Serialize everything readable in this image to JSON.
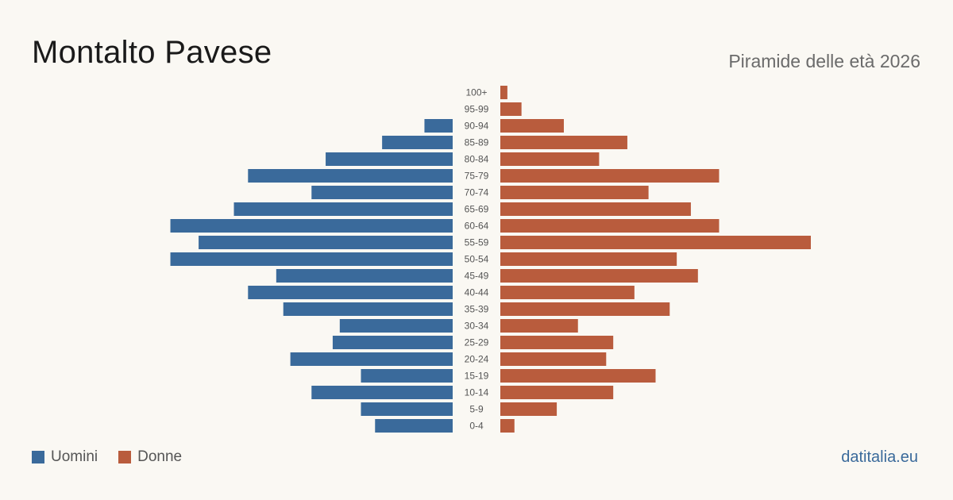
{
  "header": {
    "title": "Montalto Pavese",
    "subtitle": "Piramide delle età 2026"
  },
  "legend": {
    "items": [
      {
        "label": "Uomini",
        "color": "#3a6a9b"
      },
      {
        "label": "Donne",
        "color": "#b95c3d"
      }
    ]
  },
  "footer": {
    "source": "datitalia.eu"
  },
  "colors": {
    "men": "#3a6a9b",
    "women": "#b95c3d",
    "background": "#faf8f3"
  },
  "chart_data": {
    "type": "bar",
    "orientation": "horizontal-population-pyramid",
    "categories": [
      "100+",
      "95-99",
      "90-94",
      "85-89",
      "80-84",
      "75-79",
      "70-74",
      "65-69",
      "60-64",
      "55-59",
      "50-54",
      "45-49",
      "40-44",
      "35-39",
      "30-34",
      "25-29",
      "20-24",
      "15-19",
      "10-14",
      "5-9",
      "0-4"
    ],
    "series": [
      {
        "name": "Uomini",
        "values": [
          0,
          0,
          4,
          10,
          18,
          29,
          20,
          31,
          40,
          36,
          40,
          25,
          29,
          24,
          16,
          17,
          23,
          13,
          20,
          13,
          11
        ]
      },
      {
        "name": "Donne",
        "values": [
          1,
          3,
          9,
          18,
          14,
          31,
          21,
          27,
          31,
          44,
          25,
          28,
          19,
          24,
          11,
          16,
          15,
          22,
          16,
          8,
          2
        ]
      }
    ],
    "xlim": [
      0,
      44
    ],
    "grid": false,
    "legend_position": "bottom-left"
  }
}
